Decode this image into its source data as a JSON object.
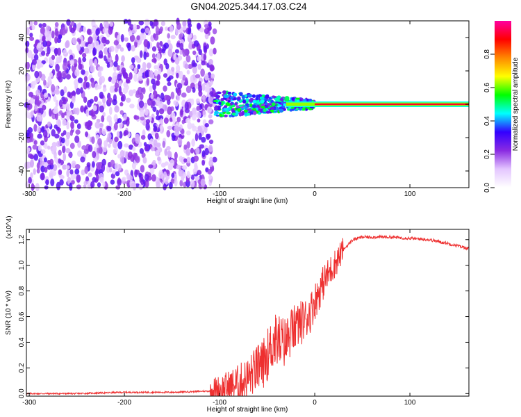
{
  "title": "GN04.2025.344.17.03.C24",
  "chart_data": [
    {
      "type": "heatmap",
      "xlabel": "Height of straight line (km)",
      "ylabel": "Frequency (Hz)",
      "xlim": [
        -303,
        162
      ],
      "ylim": [
        -50,
        50
      ],
      "xticks": [
        -300,
        -200,
        -100,
        0,
        100
      ],
      "yticks": [
        -40,
        -20,
        0,
        20,
        40
      ],
      "colorbar": {
        "label": "Normalized spectral amplitude",
        "range": [
          0.0,
          1.0
        ],
        "ticks": [
          "0.0",
          "0.2",
          "0.4",
          "0.6",
          "0.8"
        ],
        "colors": [
          "#ffffff",
          "#e4c6ff",
          "#8a2be2",
          "#3300ff",
          "#00ffff",
          "#00ff00",
          "#ffff00",
          "#ff8800",
          "#ff0000",
          "#ff00a0"
        ]
      },
      "features": [
        {
          "desc": "scattered noise",
          "x_range": [
            -303,
            -105
          ],
          "freq_range": [
            -50,
            50
          ],
          "amplitude": 0.1
        },
        {
          "desc": "transition band",
          "x_range": [
            -105,
            0
          ],
          "freq_range": [
            -8,
            8
          ],
          "amplitude": 0.4
        },
        {
          "desc": "steady carrier line",
          "x_range": [
            0,
            162
          ],
          "freq": 0,
          "amplitude": 1.0
        }
      ]
    },
    {
      "type": "line",
      "xlabel": "Height of straight line (km)",
      "ylabel": "SNR (10 * v/v)",
      "y_scale_note": "(x10^4)",
      "xlim": [
        -303,
        162
      ],
      "ylim": [
        -0.02,
        1.28
      ],
      "xticks": [
        -300,
        -200,
        -100,
        0,
        100
      ],
      "yticks": [
        "0.0",
        "0.2",
        "0.4",
        "0.6",
        "0.8",
        "1.0",
        "1.2"
      ],
      "series": [
        {
          "name": "SNR",
          "color": "#ee3030",
          "x": [
            -303,
            -250,
            -200,
            -150,
            -110,
            -100,
            -90,
            -80,
            -70,
            -65,
            -60,
            -55,
            -50,
            -45,
            -40,
            -35,
            -30,
            -25,
            -20,
            -15,
            -10,
            -5,
            0,
            10,
            20,
            30,
            40,
            50,
            60,
            80,
            100,
            120,
            140,
            162
          ],
          "y": [
            0.0,
            0.0,
            0.01,
            0.01,
            0.02,
            0.03,
            0.05,
            0.08,
            0.12,
            0.16,
            0.2,
            0.22,
            0.3,
            0.38,
            0.42,
            0.4,
            0.4,
            0.48,
            0.52,
            0.55,
            0.58,
            0.63,
            0.72,
            0.88,
            1.0,
            1.12,
            1.2,
            1.22,
            1.22,
            1.22,
            1.21,
            1.2,
            1.17,
            1.13
          ]
        }
      ]
    }
  ]
}
